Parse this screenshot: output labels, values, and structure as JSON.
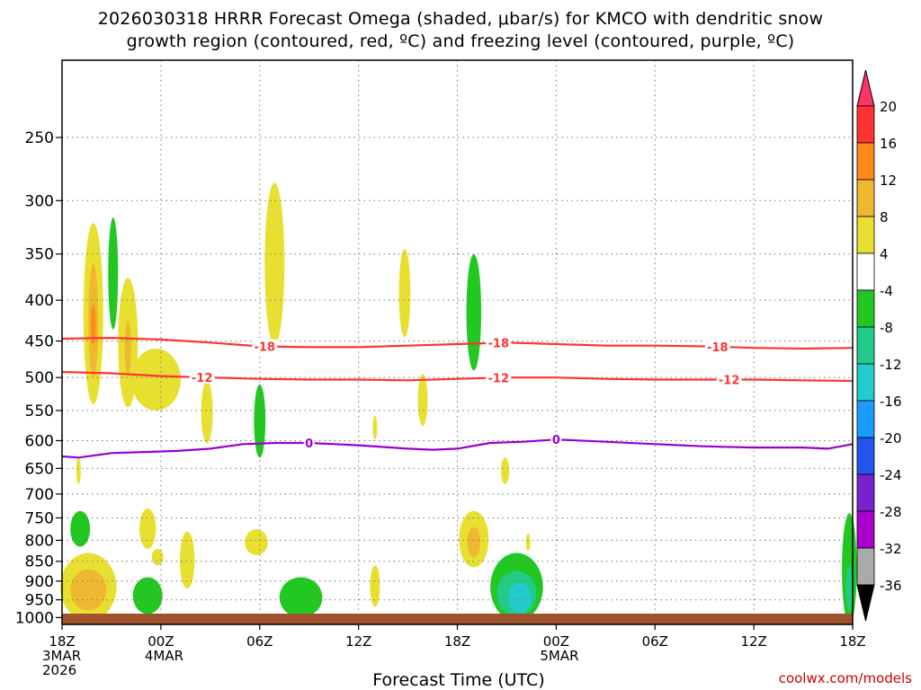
{
  "chart_data": {
    "type": "contour",
    "title_line1": "2026030318 HRRR Forecast Omega (shaded, μbar/s) for KMCO with dendritic snow",
    "title_line2": "growth region (contoured, red, ºC) and freezing level (contoured, purple, ºC)",
    "xlabel": "Forecast Time (UTC)",
    "credit": "coolwx.com/models",
    "x_range_hours": [
      0,
      48
    ],
    "ylim": [
      1020,
      200
    ],
    "y_scale": "log",
    "y_ticks": [
      250,
      300,
      350,
      400,
      450,
      500,
      550,
      600,
      650,
      700,
      750,
      800,
      850,
      900,
      950,
      1000
    ],
    "x_ticks": [
      {
        "hour": 0,
        "lines": [
          "18Z",
          "3MAR",
          "2026"
        ]
      },
      {
        "hour": 6,
        "lines": [
          "00Z",
          "4MAR"
        ]
      },
      {
        "hour": 12,
        "lines": [
          "06Z"
        ]
      },
      {
        "hour": 18,
        "lines": [
          "12Z"
        ]
      },
      {
        "hour": 24,
        "lines": [
          "18Z"
        ]
      },
      {
        "hour": 30,
        "lines": [
          "00Z",
          "5MAR"
        ]
      },
      {
        "hour": 36,
        "lines": [
          "06Z"
        ]
      },
      {
        "hour": 42,
        "lines": [
          "12Z"
        ]
      },
      {
        "hour": 48,
        "lines": [
          "18Z"
        ]
      }
    ],
    "grid": true,
    "colorbar": {
      "labels": [
        "20",
        "16",
        "12",
        "8",
        "4",
        "-4",
        "-8",
        "-12",
        "-16",
        "-20",
        "-24",
        "-28",
        "-32",
        "-36"
      ],
      "colors": [
        "#ff3366",
        "#ff3333",
        "#ff8a1a",
        "#f0b830",
        "#e8e030",
        "#ffffff",
        "#22c822",
        "#22cc88",
        "#22cccc",
        "#1a9cff",
        "#2255ee",
        "#7722cc",
        "#aa00cc",
        "#aaaaaa",
        "#000000"
      ]
    },
    "contours": [
      {
        "label": "-18",
        "color": "#ff3333",
        "label_hours": [
          12.3,
          26.5,
          39.8
        ],
        "points": [
          [
            0,
            447
          ],
          [
            3,
            446
          ],
          [
            6,
            448
          ],
          [
            9,
            452
          ],
          [
            12,
            457
          ],
          [
            15,
            458
          ],
          [
            18,
            458
          ],
          [
            21,
            456
          ],
          [
            24,
            454
          ],
          [
            27,
            452
          ],
          [
            30,
            454
          ],
          [
            33,
            456
          ],
          [
            36,
            456
          ],
          [
            39,
            457
          ],
          [
            42,
            459
          ],
          [
            45,
            460
          ],
          [
            48,
            459
          ]
        ]
      },
      {
        "label": "-12",
        "color": "#ff3333",
        "label_hours": [
          8.5,
          26.5,
          40.5
        ],
        "points": [
          [
            0,
            492
          ],
          [
            3,
            494
          ],
          [
            6,
            498
          ],
          [
            9,
            500
          ],
          [
            12,
            502
          ],
          [
            15,
            503
          ],
          [
            18,
            503
          ],
          [
            21,
            504
          ],
          [
            24,
            502
          ],
          [
            27,
            500
          ],
          [
            30,
            500
          ],
          [
            33,
            502
          ],
          [
            36,
            503
          ],
          [
            39,
            503
          ],
          [
            42,
            503
          ],
          [
            45,
            504
          ],
          [
            48,
            505
          ]
        ]
      },
      {
        "label": "0",
        "color": "#9900cc",
        "label_hours": [
          15.0,
          30.0
        ],
        "points": [
          [
            0,
            628
          ],
          [
            1,
            630
          ],
          [
            3,
            622
          ],
          [
            5,
            620
          ],
          [
            7,
            618
          ],
          [
            9,
            614
          ],
          [
            11,
            606
          ],
          [
            13,
            604
          ],
          [
            15,
            604
          ],
          [
            18,
            608
          ],
          [
            21,
            614
          ],
          [
            22.5,
            616
          ],
          [
            24,
            614
          ],
          [
            26,
            604
          ],
          [
            28,
            602
          ],
          [
            30,
            598
          ],
          [
            33,
            602
          ],
          [
            36,
            606
          ],
          [
            39,
            610
          ],
          [
            42,
            612
          ],
          [
            45,
            612
          ],
          [
            46.5,
            614
          ],
          [
            48,
            606
          ]
        ]
      }
    ],
    "omega_blobs": [
      {
        "color": "#e8e030",
        "hour": 1.9,
        "p": 430,
        "dh": 0.6,
        "dp": 110
      },
      {
        "color": "#f0b830",
        "hour": 1.9,
        "p": 430,
        "dh": 0.3,
        "dp": 70
      },
      {
        "color": "#ff8a1a",
        "hour": 1.9,
        "p": 430,
        "dh": 0.15,
        "dp": 25
      },
      {
        "color": "#22c822",
        "hour": 3.1,
        "p": 375,
        "dh": 0.3,
        "dp": 60
      },
      {
        "color": "#e8e030",
        "hour": 4.0,
        "p": 460,
        "dh": 0.6,
        "dp": 85
      },
      {
        "color": "#f0b830",
        "hour": 4.0,
        "p": 460,
        "dh": 0.2,
        "dp": 35
      },
      {
        "color": "#e8e030",
        "hour": 5.7,
        "p": 505,
        "dh": 1.5,
        "dp": 45
      },
      {
        "color": "#e8e030",
        "hour": 8.8,
        "p": 555,
        "dh": 0.35,
        "dp": 50
      },
      {
        "color": "#22c822",
        "hour": 12.0,
        "p": 570,
        "dh": 0.35,
        "dp": 60
      },
      {
        "color": "#e8e030",
        "hour": 12.9,
        "p": 370,
        "dh": 0.6,
        "dp": 85
      },
      {
        "color": "#e8e030",
        "hour": 20.8,
        "p": 395,
        "dh": 0.35,
        "dp": 50
      },
      {
        "color": "#e8e030",
        "hour": 21.9,
        "p": 535,
        "dh": 0.3,
        "dp": 40
      },
      {
        "color": "#e8e030",
        "hour": 19.0,
        "p": 578,
        "dh": 0.12,
        "dp": 20
      },
      {
        "color": "#22c822",
        "hour": 25.0,
        "p": 420,
        "dh": 0.45,
        "dp": 70
      },
      {
        "color": "#e8e030",
        "hour": 26.9,
        "p": 655,
        "dh": 0.25,
        "dp": 25
      },
      {
        "color": "#e8e030",
        "hour": 1.0,
        "p": 655,
        "dh": 0.12,
        "dp": 25
      },
      {
        "color": "#22c822",
        "hour": 1.1,
        "p": 775,
        "dh": 0.6,
        "dp": 40
      },
      {
        "color": "#e8e030",
        "hour": 1.6,
        "p": 920,
        "dh": 1.7,
        "dp": 90
      },
      {
        "color": "#f0b830",
        "hour": 1.6,
        "p": 925,
        "dh": 1.1,
        "dp": 55
      },
      {
        "color": "#e8e030",
        "hour": 5.2,
        "p": 775,
        "dh": 0.5,
        "dp": 45
      },
      {
        "color": "#e8e030",
        "hour": 5.8,
        "p": 840,
        "dh": 0.35,
        "dp": 20
      },
      {
        "color": "#22c822",
        "hour": 5.2,
        "p": 940,
        "dh": 0.9,
        "dp": 50
      },
      {
        "color": "#e8e030",
        "hour": 7.6,
        "p": 850,
        "dh": 0.45,
        "dp": 70
      },
      {
        "color": "#e8e030",
        "hour": 11.8,
        "p": 805,
        "dh": 0.7,
        "dp": 30
      },
      {
        "color": "#22c822",
        "hour": 14.5,
        "p": 945,
        "dh": 1.3,
        "dp": 55
      },
      {
        "color": "#e8e030",
        "hour": 19.0,
        "p": 915,
        "dh": 0.3,
        "dp": 55
      },
      {
        "color": "#e8e030",
        "hour": 25.0,
        "p": 800,
        "dh": 0.9,
        "dp": 65
      },
      {
        "color": "#f0b830",
        "hour": 25.0,
        "p": 805,
        "dh": 0.4,
        "dp": 35
      },
      {
        "color": "#22c822",
        "hour": 27.6,
        "p": 920,
        "dh": 1.6,
        "dp": 90
      },
      {
        "color": "#22cc88",
        "hour": 27.6,
        "p": 935,
        "dh": 1.2,
        "dp": 60
      },
      {
        "color": "#22cccc",
        "hour": 27.8,
        "p": 945,
        "dh": 0.7,
        "dp": 40
      },
      {
        "color": "#e8e030",
        "hour": 28.3,
        "p": 805,
        "dh": 0.12,
        "dp": 20
      },
      {
        "color": "#22c822",
        "hour": 47.8,
        "p": 880,
        "dh": 0.45,
        "dp": 140
      },
      {
        "color": "#22cc88",
        "hour": 47.8,
        "p": 920,
        "dh": 0.2,
        "dp": 60
      }
    ]
  }
}
